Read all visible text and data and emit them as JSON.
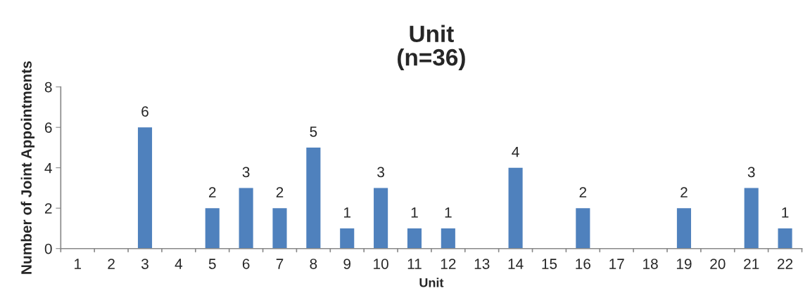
{
  "chart_data": {
    "type": "bar",
    "title": "Unit\n(n=36)",
    "xlabel": "Unit",
    "ylabel": "Number of Joint Appointments",
    "categories": [
      "1",
      "2",
      "3",
      "4",
      "5",
      "6",
      "7",
      "8",
      "9",
      "10",
      "11",
      "12",
      "13",
      "14",
      "15",
      "16",
      "17",
      "18",
      "19",
      "20",
      "21",
      "22"
    ],
    "values": [
      0,
      0,
      6,
      0,
      2,
      3,
      2,
      5,
      1,
      3,
      1,
      1,
      0,
      4,
      0,
      2,
      0,
      0,
      2,
      0,
      3,
      1
    ],
    "value_labels": [
      null,
      null,
      "6",
      null,
      "2",
      "3",
      "2",
      "5",
      "1",
      "3",
      "1",
      "1",
      null,
      "4",
      null,
      "2",
      null,
      null,
      "2",
      null,
      "3",
      "1"
    ],
    "color": "#4f81bd",
    "ylim": [
      0,
      8
    ],
    "yticks": [
      0,
      2,
      4,
      6,
      8
    ],
    "grid": false,
    "legend": false
  }
}
